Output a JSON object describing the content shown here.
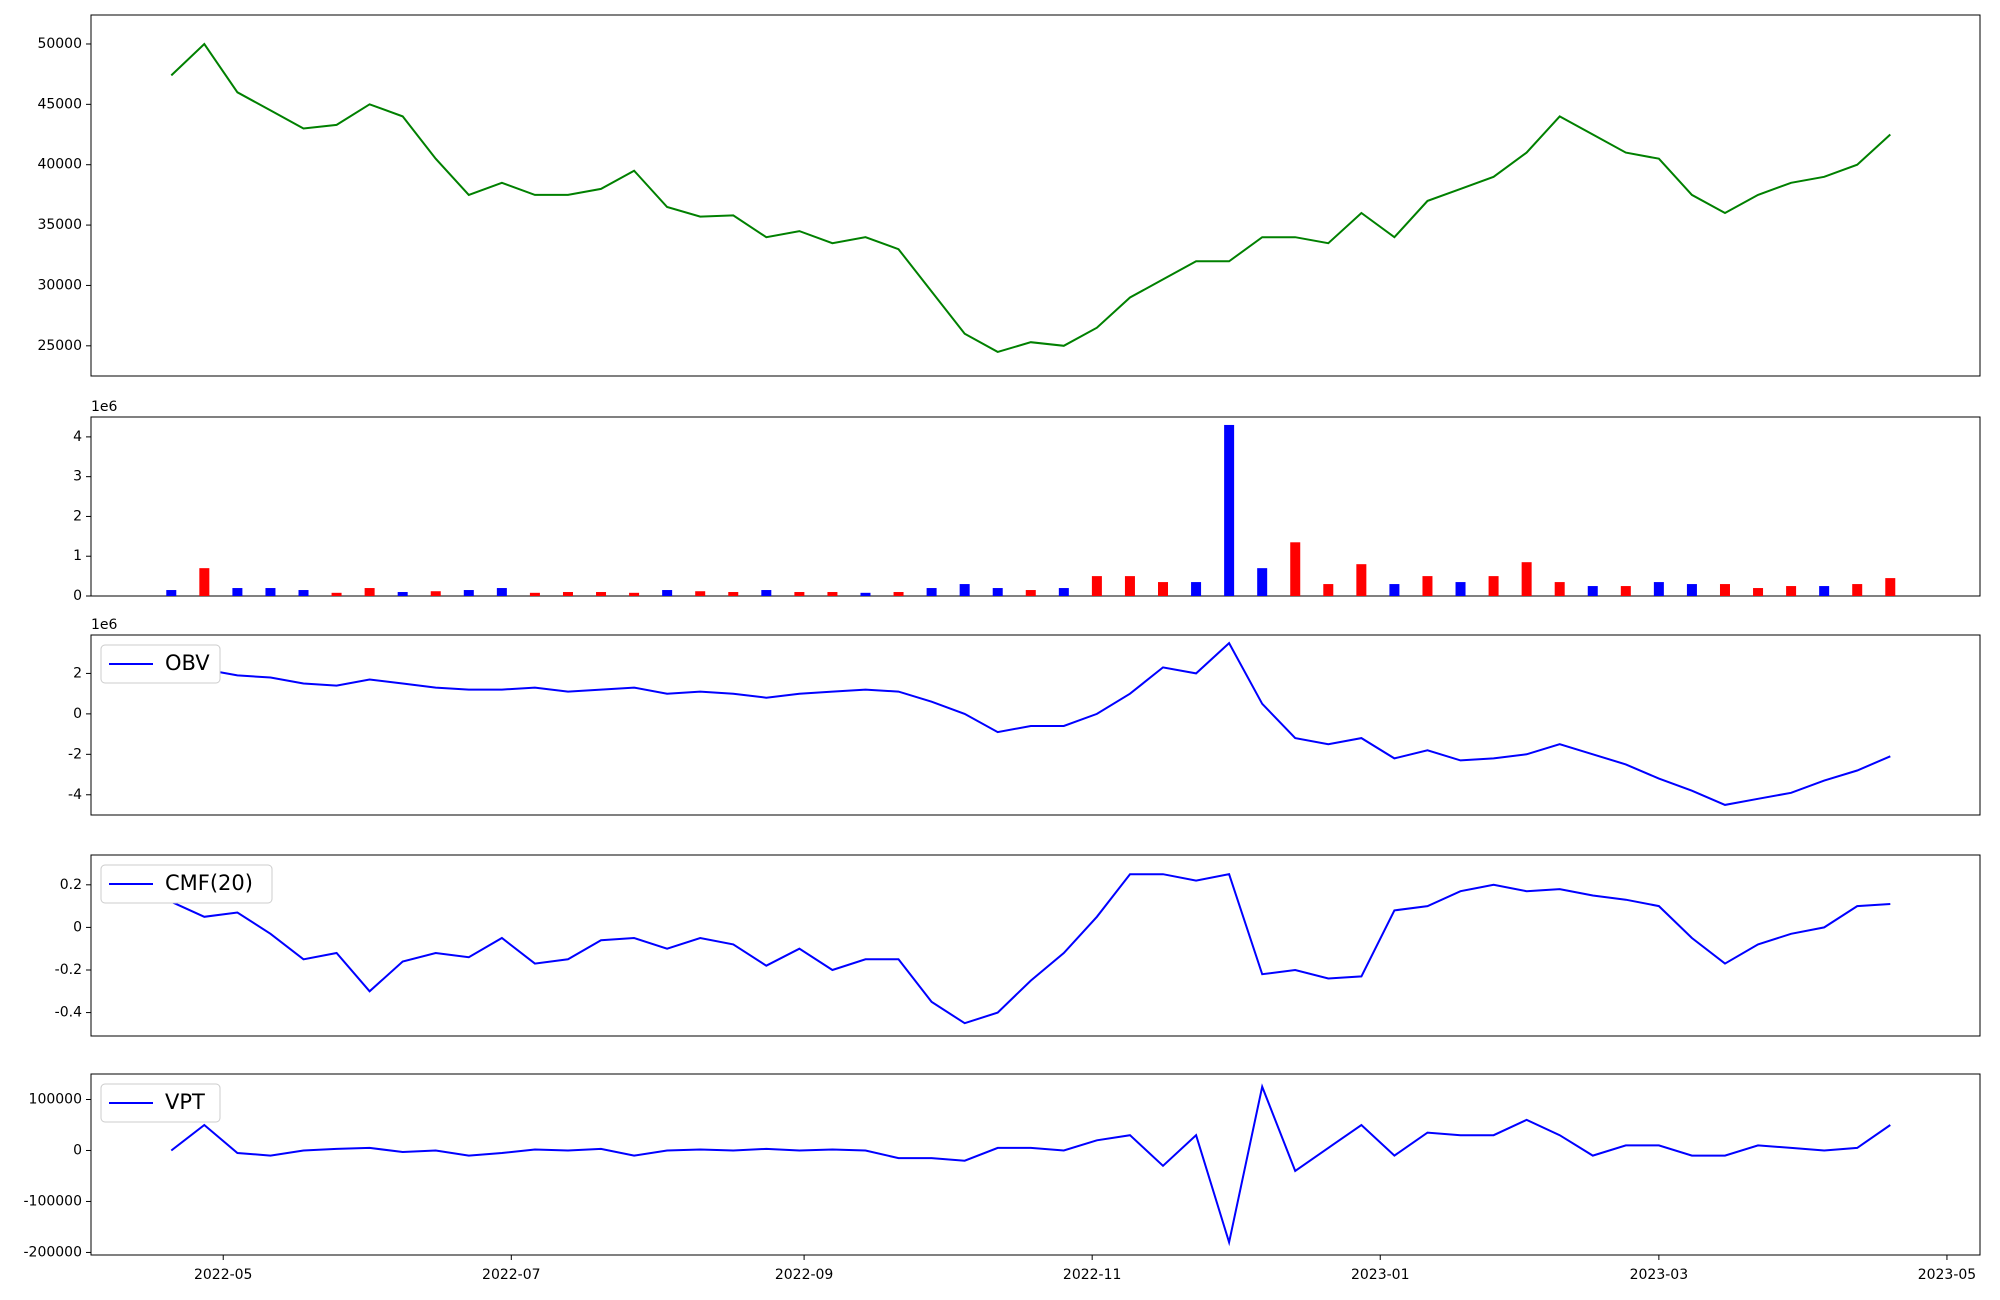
{
  "chart_data": [
    {
      "type": "line",
      "color": "#008000",
      "x": [
        "2022-04-20",
        "2022-04-27",
        "2022-05-04",
        "2022-05-11",
        "2022-05-18",
        "2022-05-25",
        "2022-06-01",
        "2022-06-08",
        "2022-06-15",
        "2022-06-22",
        "2022-06-29",
        "2022-07-06",
        "2022-07-13",
        "2022-07-20",
        "2022-07-27",
        "2022-08-03",
        "2022-08-10",
        "2022-08-17",
        "2022-08-24",
        "2022-08-31",
        "2022-09-07",
        "2022-09-14",
        "2022-09-21",
        "2022-09-28",
        "2022-10-05",
        "2022-10-12",
        "2022-10-19",
        "2022-10-26",
        "2022-11-02",
        "2022-11-09",
        "2022-11-16",
        "2022-11-23",
        "2022-11-30",
        "2022-12-07",
        "2022-12-14",
        "2022-12-21",
        "2022-12-28",
        "2023-01-04",
        "2023-01-11",
        "2023-01-18",
        "2023-01-25",
        "2023-02-01",
        "2023-02-08",
        "2023-02-15",
        "2023-02-22",
        "2023-03-01",
        "2023-03-08",
        "2023-03-15",
        "2023-03-22",
        "2023-03-29",
        "2023-04-05",
        "2023-04-12",
        "2023-04-19"
      ],
      "values": [
        47400,
        50000,
        46000,
        44500,
        43000,
        43300,
        45000,
        44000,
        40500,
        37500,
        38500,
        37500,
        37500,
        38000,
        39500,
        36500,
        35700,
        35800,
        34000,
        34500,
        33500,
        34000,
        33000,
        29500,
        26000,
        24500,
        25300,
        25000,
        26500,
        29000,
        30500,
        32000,
        32000,
        34000,
        34000,
        33500,
        36000,
        34000,
        37000,
        38000,
        39000,
        41000,
        44000,
        42500,
        41000,
        40500,
        37500,
        36000,
        37500,
        38500,
        39000,
        40000,
        42500
      ],
      "xlim": [
        "2022-04-03",
        "2023-05-08"
      ],
      "ylim": [
        22500,
        52400
      ],
      "yticks": [
        25000,
        30000,
        35000,
        40000,
        45000,
        50000
      ]
    },
    {
      "type": "bar",
      "offset_label": "1e6",
      "x": [
        "2022-04-20",
        "2022-04-27",
        "2022-05-04",
        "2022-05-11",
        "2022-05-18",
        "2022-05-25",
        "2022-06-01",
        "2022-06-08",
        "2022-06-15",
        "2022-06-22",
        "2022-06-29",
        "2022-07-06",
        "2022-07-13",
        "2022-07-20",
        "2022-07-27",
        "2022-08-03",
        "2022-08-10",
        "2022-08-17",
        "2022-08-24",
        "2022-08-31",
        "2022-09-07",
        "2022-09-14",
        "2022-09-21",
        "2022-09-28",
        "2022-10-05",
        "2022-10-12",
        "2022-10-19",
        "2022-10-26",
        "2022-11-02",
        "2022-11-09",
        "2022-11-16",
        "2022-11-23",
        "2022-11-30",
        "2022-12-07",
        "2022-12-14",
        "2022-12-21",
        "2022-12-28",
        "2023-01-04",
        "2023-01-11",
        "2023-01-18",
        "2023-01-25",
        "2023-02-01",
        "2023-02-08",
        "2023-02-15",
        "2023-02-22",
        "2023-03-01",
        "2023-03-08",
        "2023-03-15",
        "2023-03-22",
        "2023-03-29",
        "2023-04-05",
        "2023-04-12",
        "2023-04-19"
      ],
      "values": [
        0.15,
        0.7,
        0.2,
        0.2,
        0.15,
        0.08,
        0.2,
        0.1,
        0.12,
        0.15,
        0.2,
        0.08,
        0.1,
        0.1,
        0.08,
        0.15,
        0.12,
        0.1,
        0.15,
        0.1,
        0.1,
        0.08,
        0.1,
        0.2,
        0.3,
        0.2,
        0.15,
        0.2,
        0.5,
        0.5,
        0.35,
        0.35,
        4.3,
        0.7,
        1.35,
        0.3,
        0.8,
        0.3,
        0.5,
        0.35,
        0.5,
        0.85,
        0.35,
        0.25,
        0.25,
        0.35,
        0.3,
        0.3,
        0.2,
        0.25,
        0.25,
        0.3,
        0.45
      ],
      "colors": [
        "blue",
        "red",
        "blue",
        "blue",
        "blue",
        "red",
        "red",
        "blue",
        "red",
        "blue",
        "blue",
        "red",
        "red",
        "red",
        "red",
        "blue",
        "red",
        "red",
        "blue",
        "red",
        "red",
        "blue",
        "red",
        "blue",
        "blue",
        "blue",
        "red",
        "blue",
        "red",
        "red",
        "red",
        "blue",
        "blue",
        "blue",
        "red",
        "red",
        "red",
        "blue",
        "red",
        "blue",
        "red",
        "red",
        "red",
        "blue",
        "red",
        "blue",
        "blue",
        "red",
        "red",
        "red",
        "blue",
        "red",
        "red"
      ],
      "xlim": [
        "2022-04-03",
        "2023-05-08"
      ],
      "ylim": [
        0,
        4.5
      ],
      "yticks": [
        0,
        1,
        2,
        3,
        4
      ]
    },
    {
      "type": "line",
      "offset_label": "1e6",
      "legend": "upper left",
      "x": [
        "2022-04-20",
        "2022-04-27",
        "2022-05-04",
        "2022-05-11",
        "2022-05-18",
        "2022-05-25",
        "2022-06-01",
        "2022-06-08",
        "2022-06-15",
        "2022-06-22",
        "2022-06-29",
        "2022-07-06",
        "2022-07-13",
        "2022-07-20",
        "2022-07-27",
        "2022-08-03",
        "2022-08-10",
        "2022-08-17",
        "2022-08-24",
        "2022-08-31",
        "2022-09-07",
        "2022-09-14",
        "2022-09-21",
        "2022-09-28",
        "2022-10-05",
        "2022-10-12",
        "2022-10-19",
        "2022-10-26",
        "2022-11-02",
        "2022-11-09",
        "2022-11-16",
        "2022-11-23",
        "2022-11-30",
        "2022-12-07",
        "2022-12-14",
        "2022-12-21",
        "2022-12-28",
        "2023-01-04",
        "2023-01-11",
        "2023-01-18",
        "2023-01-25",
        "2023-02-01",
        "2023-02-08",
        "2023-02-15",
        "2023-02-22",
        "2023-03-01",
        "2023-03-08",
        "2023-03-15",
        "2023-03-22",
        "2023-03-29",
        "2023-04-05",
        "2023-04-12",
        "2023-04-19"
      ],
      "series": [
        {
          "name": "OBV",
          "color": "blue",
          "values": [
            2.1,
            2.2,
            1.9,
            1.8,
            1.5,
            1.4,
            1.7,
            1.5,
            1.3,
            1.2,
            1.2,
            1.3,
            1.1,
            1.2,
            1.3,
            1.0,
            1.1,
            1.0,
            0.8,
            1.0,
            1.1,
            1.2,
            1.1,
            0.6,
            0.0,
            -0.9,
            -0.6,
            -0.6,
            0.0,
            1.0,
            2.3,
            2.0,
            3.5,
            0.5,
            -1.2,
            -1.5,
            -1.2,
            -2.2,
            -1.8,
            -2.3,
            -2.2,
            -2.0,
            -1.5,
            -2.0,
            -2.5,
            -3.2,
            -3.8,
            -4.5,
            -4.2,
            -3.9,
            -3.3,
            -2.8,
            -2.1
          ]
        }
      ],
      "xlim": [
        "2022-04-03",
        "2023-05-08"
      ],
      "ylim": [
        -5,
        3.9
      ],
      "yticks": [
        -4,
        -2,
        0,
        2
      ]
    },
    {
      "type": "line",
      "legend": "upper left",
      "x": [
        "2022-04-20",
        "2022-04-27",
        "2022-05-04",
        "2022-05-11",
        "2022-05-18",
        "2022-05-25",
        "2022-06-01",
        "2022-06-08",
        "2022-06-15",
        "2022-06-22",
        "2022-06-29",
        "2022-07-06",
        "2022-07-13",
        "2022-07-20",
        "2022-07-27",
        "2022-08-03",
        "2022-08-10",
        "2022-08-17",
        "2022-08-24",
        "2022-08-31",
        "2022-09-07",
        "2022-09-14",
        "2022-09-21",
        "2022-09-28",
        "2022-10-05",
        "2022-10-12",
        "2022-10-19",
        "2022-10-26",
        "2022-11-02",
        "2022-11-09",
        "2022-11-16",
        "2022-11-23",
        "2022-11-30",
        "2022-12-07",
        "2022-12-14",
        "2022-12-21",
        "2022-12-28",
        "2023-01-04",
        "2023-01-11",
        "2023-01-18",
        "2023-01-25",
        "2023-02-01",
        "2023-02-08",
        "2023-02-15",
        "2023-02-22",
        "2023-03-01",
        "2023-03-08",
        "2023-03-15",
        "2023-03-22",
        "2023-03-29",
        "2023-04-05",
        "2023-04-12",
        "2023-04-19"
      ],
      "series": [
        {
          "name": "CMF(20)",
          "color": "blue",
          "values": [
            0.12,
            0.05,
            0.07,
            -0.03,
            -0.15,
            -0.12,
            -0.3,
            -0.16,
            -0.12,
            -0.14,
            -0.05,
            -0.17,
            -0.15,
            -0.06,
            -0.05,
            -0.1,
            -0.05,
            -0.08,
            -0.18,
            -0.1,
            -0.2,
            -0.15,
            -0.15,
            -0.35,
            -0.45,
            -0.4,
            -0.25,
            -0.12,
            0.05,
            0.25,
            0.25,
            0.22,
            0.25,
            -0.22,
            -0.2,
            -0.24,
            -0.23,
            0.08,
            0.1,
            0.17,
            0.2,
            0.17,
            0.18,
            0.15,
            0.13,
            0.1,
            -0.05,
            -0.17,
            -0.08,
            -0.03,
            0.0,
            0.1,
            0.11
          ]
        }
      ],
      "xlim": [
        "2022-04-03",
        "2023-05-08"
      ],
      "ylim": [
        -0.51,
        0.34
      ],
      "yticks": [
        -0.4,
        -0.2,
        0.0,
        0.2
      ]
    },
    {
      "type": "line",
      "legend": "upper left",
      "x": [
        "2022-04-20",
        "2022-04-27",
        "2022-05-04",
        "2022-05-11",
        "2022-05-18",
        "2022-05-25",
        "2022-06-01",
        "2022-06-08",
        "2022-06-15",
        "2022-06-22",
        "2022-06-29",
        "2022-07-06",
        "2022-07-13",
        "2022-07-20",
        "2022-07-27",
        "2022-08-03",
        "2022-08-10",
        "2022-08-17",
        "2022-08-24",
        "2022-08-31",
        "2022-09-07",
        "2022-09-14",
        "2022-09-21",
        "2022-09-28",
        "2022-10-05",
        "2022-10-12",
        "2022-10-19",
        "2022-10-26",
        "2022-11-02",
        "2022-11-09",
        "2022-11-16",
        "2022-11-23",
        "2022-11-30",
        "2022-12-07",
        "2022-12-14",
        "2022-12-21",
        "2022-12-28",
        "2023-01-04",
        "2023-01-11",
        "2023-01-18",
        "2023-01-25",
        "2023-02-01",
        "2023-02-08",
        "2023-02-15",
        "2023-02-22",
        "2023-03-01",
        "2023-03-08",
        "2023-03-15",
        "2023-03-22",
        "2023-03-29",
        "2023-04-05",
        "2023-04-12",
        "2023-04-19"
      ],
      "series": [
        {
          "name": "VPT",
          "color": "blue",
          "values": [
            0,
            50000,
            -5000,
            -10000,
            0,
            3000,
            5000,
            -3000,
            0,
            -10000,
            -5000,
            2000,
            0,
            3000,
            -10000,
            0,
            2000,
            0,
            3000,
            0,
            2000,
            0,
            -15000,
            -15000,
            -20000,
            5000,
            5000,
            0,
            20000,
            30000,
            -30000,
            30000,
            -180000,
            125000,
            -40000,
            5000,
            50000,
            -10000,
            35000,
            30000,
            30000,
            60000,
            30000,
            -10000,
            10000,
            10000,
            -10000,
            -10000,
            10000,
            5000,
            0,
            5000,
            50000
          ]
        }
      ],
      "xlim": [
        "2022-04-03",
        "2023-05-08"
      ],
      "ylim": [
        -205000,
        150000
      ],
      "yticks": [
        -200000,
        -100000,
        0,
        100000
      ],
      "xticks": [
        {
          "value": "2022-05-01",
          "label": "2022-05"
        },
        {
          "value": "2022-07-01",
          "label": "2022-07"
        },
        {
          "value": "2022-09-01",
          "label": "2022-09"
        },
        {
          "value": "2022-11-01",
          "label": "2022-11"
        },
        {
          "value": "2023-01-01",
          "label": "2023-01"
        },
        {
          "value": "2023-03-01",
          "label": "2023-03"
        },
        {
          "value": "2023-05-01",
          "label": "2023-05"
        }
      ]
    }
  ]
}
